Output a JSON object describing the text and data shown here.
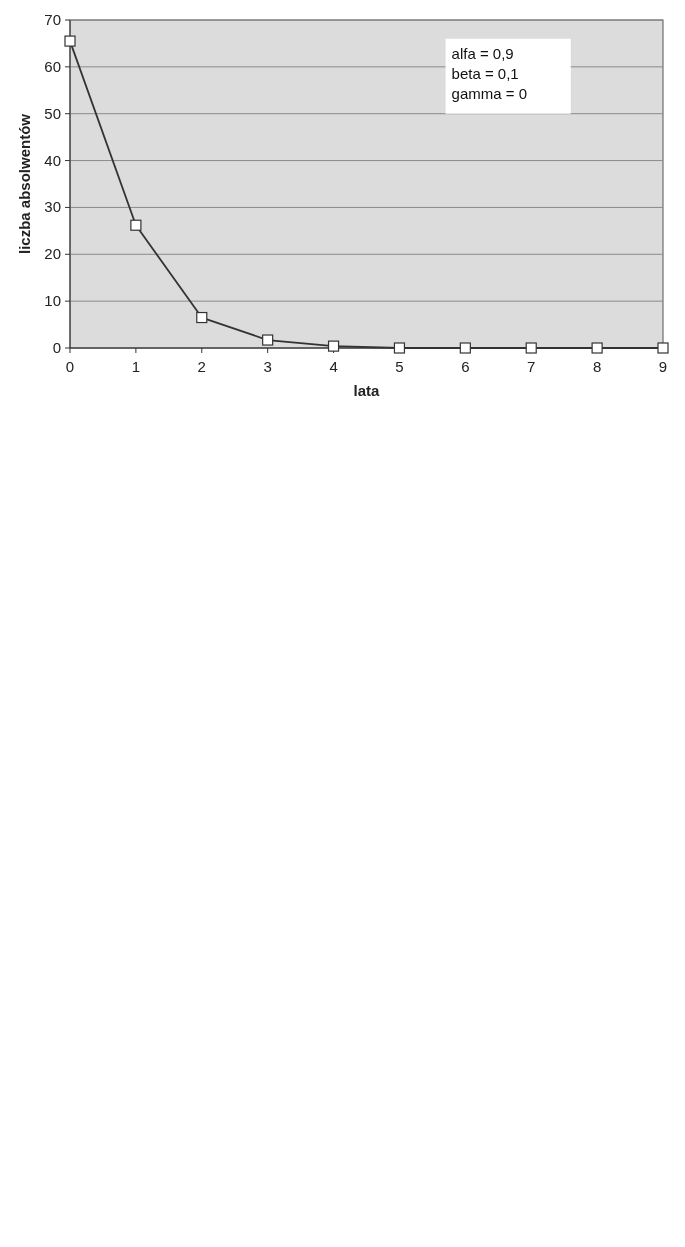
{
  "chart_data": {
    "type": "line",
    "xlabel": "lata",
    "ylabel": "liczba absolwentów",
    "x": [
      0,
      1,
      2,
      3,
      4,
      5,
      6,
      7,
      8,
      9
    ],
    "series": [
      {
        "color": "#333333",
        "values": [
          65.5,
          26.2,
          6.5,
          1.7,
          0.4,
          0,
          0,
          0,
          0,
          0
        ]
      }
    ],
    "xlim": [
      0,
      9
    ],
    "xticks": [
      0,
      1,
      2,
      3,
      4,
      5,
      6,
      7,
      8,
      9
    ],
    "ylim": [
      0,
      70
    ],
    "yticks": [
      0,
      10,
      20,
      30,
      40,
      50,
      60,
      70
    ],
    "grid": "y",
    "marker": "square",
    "line_style": "solid",
    "annotations": [
      "alfa = 0,9",
      "beta = 0,1",
      "gamma = 0"
    ]
  }
}
